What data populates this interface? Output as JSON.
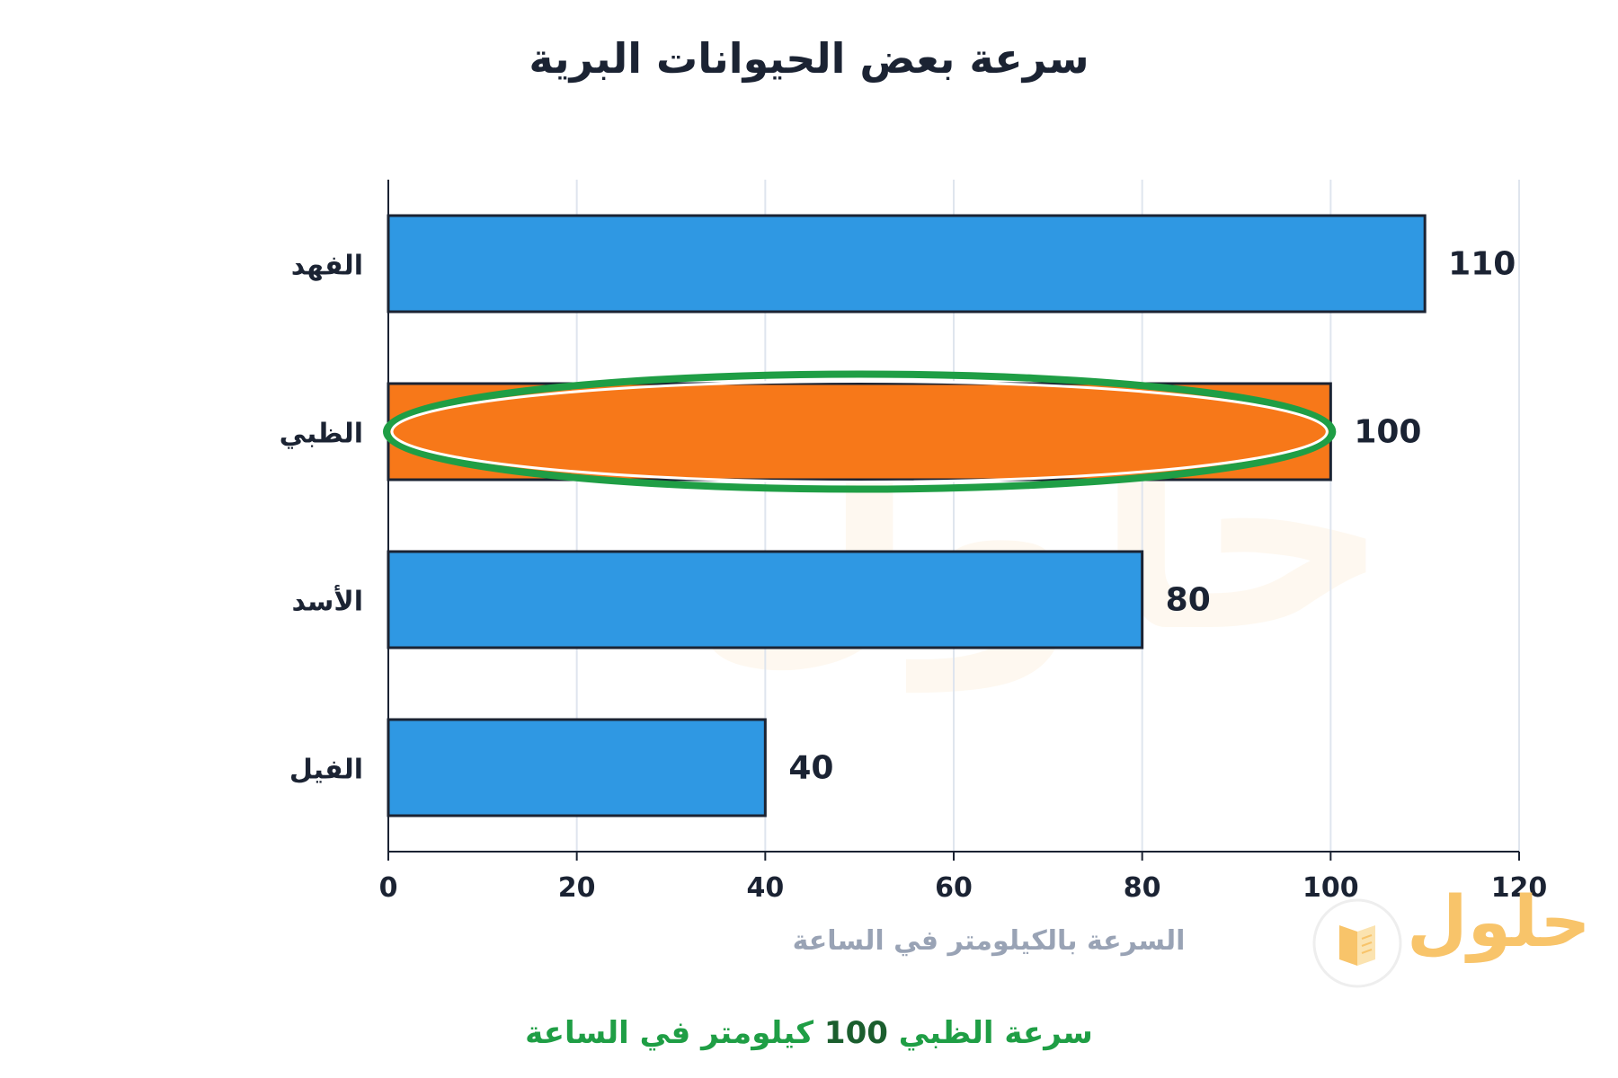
{
  "brand": {
    "logo_text": "حلول",
    "icon": "open-book-icon",
    "accent_color": "#f8c46a"
  },
  "chart_data": {
    "type": "bar",
    "orientation": "horizontal",
    "title": "سرعة بعض الحيوانات البرية",
    "xlabel": "السرعة بالكيلومتر في الساعة",
    "ylabel": "",
    "categories": [
      "الفهد",
      "الظبي",
      "الأسد",
      "الفيل"
    ],
    "values": [
      110,
      100,
      80,
      40
    ],
    "xlim": [
      0,
      120
    ],
    "xticks": [
      0,
      20,
      40,
      60,
      80,
      100,
      120
    ],
    "grid": "vertical",
    "legend": "none",
    "bar_color": "#2f98e3",
    "highlight_color": "#f77819",
    "highlight_index": 1,
    "highlight_outline_color": "#1f9e45",
    "data_labels": [
      "110",
      "100",
      "80",
      "40"
    ]
  },
  "caption": {
    "prefix": "سرعة الظبي",
    "number": "100",
    "suffix": "كيلومتر في الساعة"
  }
}
